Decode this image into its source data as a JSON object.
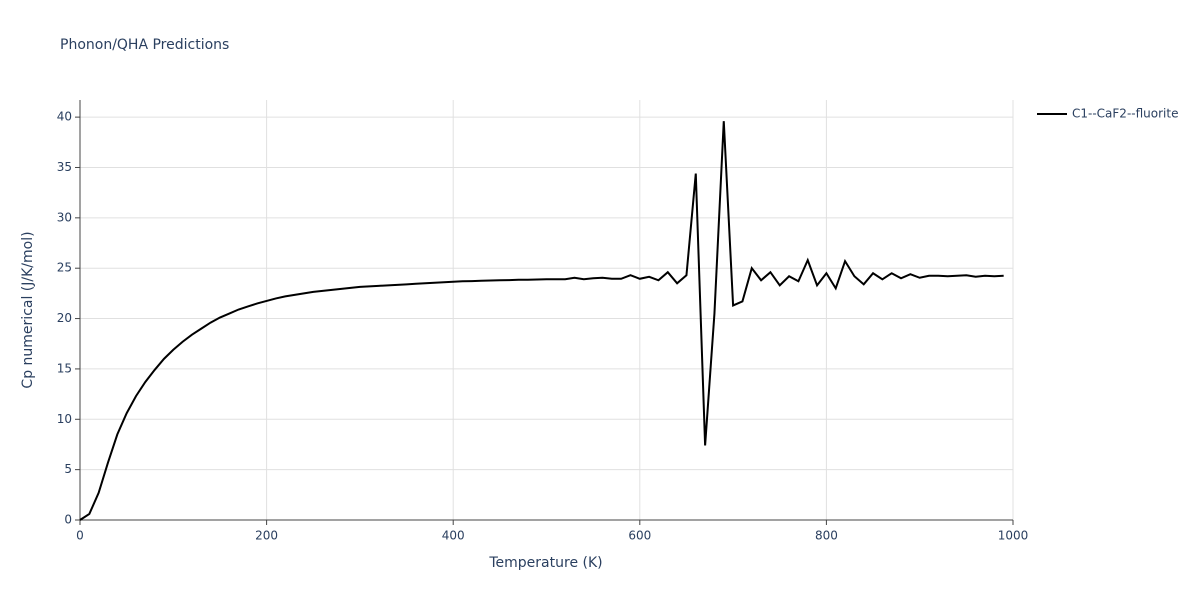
{
  "chart_data": {
    "type": "line",
    "title": "Phonon/QHA Predictions",
    "x_label": "Temperature (K)",
    "y_label": "Cp numerical (J/K/mol)",
    "x": [
      0,
      10,
      20,
      30,
      40,
      50,
      60,
      70,
      80,
      90,
      100,
      110,
      120,
      130,
      140,
      150,
      160,
      170,
      180,
      190,
      200,
      210,
      220,
      230,
      240,
      250,
      260,
      270,
      280,
      290,
      300,
      310,
      320,
      330,
      340,
      350,
      360,
      370,
      380,
      390,
      400,
      410,
      420,
      430,
      440,
      450,
      460,
      470,
      480,
      490,
      500,
      510,
      520,
      530,
      540,
      550,
      560,
      570,
      580,
      590,
      600,
      610,
      620,
      630,
      640,
      650,
      660,
      670,
      680,
      690,
      700,
      710,
      720,
      730,
      740,
      750,
      760,
      770,
      780,
      790,
      800,
      810,
      820,
      830,
      840,
      850,
      860,
      870,
      880,
      890,
      900,
      910,
      920,
      930,
      940,
      950,
      960,
      970,
      980,
      990
    ],
    "series": [
      {
        "name": "C1--CaF2--fluorite",
        "color": "#000000",
        "values": [
          0,
          0.6,
          2.7,
          5.7,
          8.5,
          10.6,
          12.3,
          13.7,
          14.9,
          16.0,
          16.9,
          17.7,
          18.4,
          19.0,
          19.6,
          20.1,
          20.5,
          20.9,
          21.2,
          21.5,
          21.75,
          22.0,
          22.2,
          22.35,
          22.5,
          22.65,
          22.75,
          22.85,
          22.95,
          23.05,
          23.15,
          23.2,
          23.25,
          23.3,
          23.35,
          23.4,
          23.45,
          23.5,
          23.55,
          23.6,
          23.65,
          23.7,
          23.72,
          23.75,
          23.78,
          23.8,
          23.82,
          23.85,
          23.85,
          23.88,
          23.9,
          23.9,
          23.9,
          24.05,
          23.9,
          24.0,
          24.05,
          23.95,
          23.95,
          24.3,
          23.95,
          24.15,
          23.8,
          24.6,
          23.5,
          24.3,
          34.4,
          7.4,
          20.5,
          39.6,
          21.3,
          21.7,
          25.0,
          23.8,
          24.6,
          23.3,
          24.2,
          23.7,
          25.8,
          23.3,
          24.5,
          23.0,
          25.7,
          24.2,
          23.4,
          24.5,
          23.9,
          24.5,
          24.0,
          24.4,
          24.05,
          24.25,
          24.25,
          24.2,
          24.25,
          24.3,
          24.15,
          24.25,
          24.2,
          24.25
        ]
      }
    ],
    "xlim": [
      0,
      1000
    ],
    "xticks": [
      0,
      200,
      400,
      600,
      800,
      1000
    ],
    "ylim": [
      0,
      41.7
    ],
    "yticks": [
      0,
      5,
      10,
      15,
      20,
      25,
      30,
      35,
      40
    ],
    "grid": true,
    "legend": "top-right"
  }
}
